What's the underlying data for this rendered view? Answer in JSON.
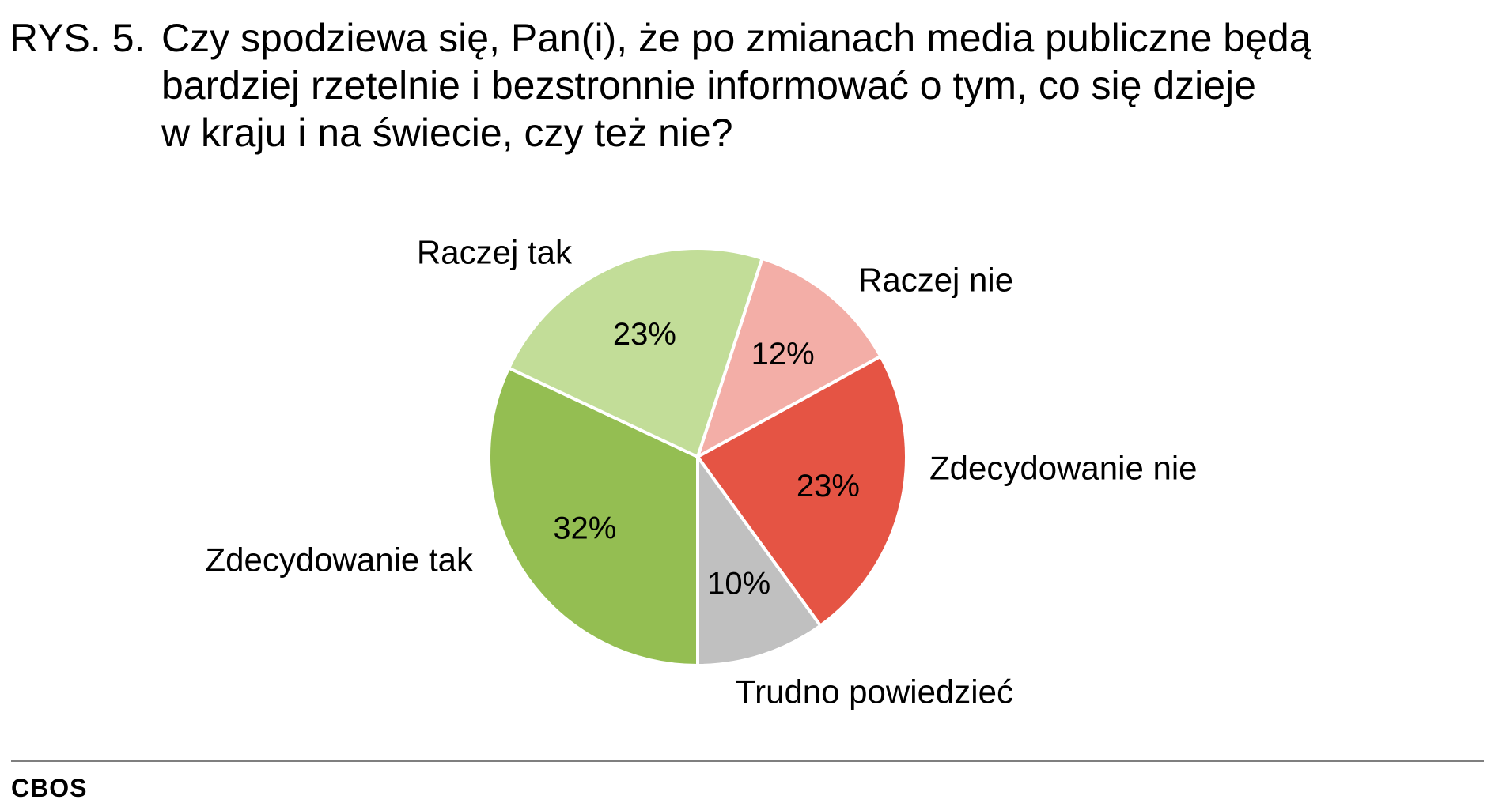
{
  "figure": {
    "label": "RYS. 5.",
    "title_lines": [
      "Czy spodziewa się, Pan(i), że po zmianach media publiczne będą",
      "bardziej rzetelnie i bezstronnie informować o tym, co się dzieje",
      "w kraju i na świecie, czy też nie?"
    ]
  },
  "chart_data": {
    "type": "pie",
    "title": "RYS. 5. Czy spodziewa się, Pan(i), że po zmianach media publiczne będą bardziej rzetelnie i bezstronnie informować o tym, co się dzieje w kraju i na świecie, czy też nie?",
    "unit": "%",
    "slices": [
      {
        "label": "Raczej nie",
        "value": 12,
        "value_label": "12%",
        "color": "#f3aea7"
      },
      {
        "label": "Zdecydowanie nie",
        "value": 23,
        "value_label": "23%",
        "color": "#e55444"
      },
      {
        "label": "Trudno powiedzieć",
        "value": 10,
        "value_label": "10%",
        "color": "#c0c0c0"
      },
      {
        "label": "Zdecydowanie tak",
        "value": 32,
        "value_label": "32%",
        "color": "#94be52"
      },
      {
        "label": "Raczej tak",
        "value": 23,
        "value_label": "23%",
        "color": "#c2dd98"
      }
    ]
  },
  "footer": {
    "source": "CBOS"
  }
}
